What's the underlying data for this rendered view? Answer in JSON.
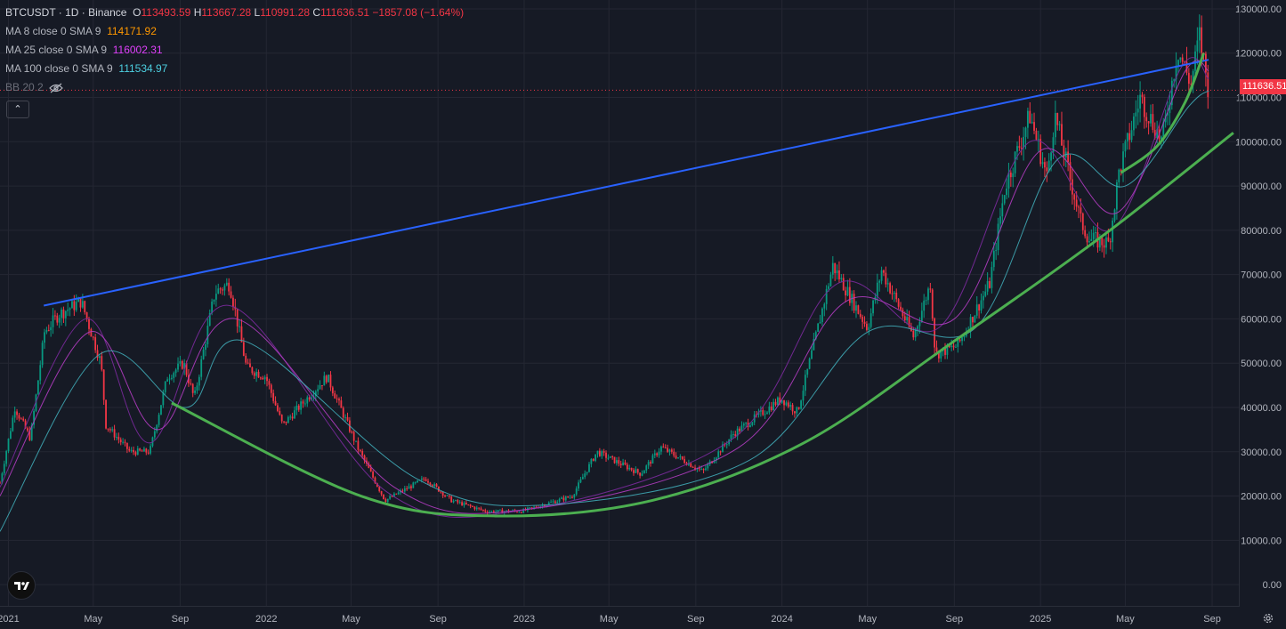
{
  "header": {
    "symbol": "BTCUSDT · 1D · Binance",
    "o_label": "O",
    "o_value": "113493.59",
    "h_label": "H",
    "h_value": "113667.28",
    "l_label": "L",
    "l_value": "110991.28",
    "c_label": "C",
    "c_value": "111636.51",
    "change": "−1857.08 (−1.64%)"
  },
  "indicators": {
    "ma8": {
      "label": "MA 8 close 0 SMA 9",
      "value": "114171.92",
      "color": "#ff9800"
    },
    "ma25": {
      "label": "MA 25 close 0 SMA 9",
      "value": "116002.31",
      "color": "#e040fb"
    },
    "ma100": {
      "label": "MA 100 close 0 SMA 9",
      "value": "111534.97",
      "color": "#4dd0e1"
    },
    "bb": {
      "label": "BB 20 2",
      "icon": "eye-off-icon"
    }
  },
  "collapse_glyph": "⌃",
  "last_price": "111636.51",
  "colors": {
    "up": "#089981",
    "down": "#f23645",
    "blue_line": "#2962ff",
    "green_curve": "#4caf50",
    "bg": "#161a25"
  },
  "chart_data": {
    "type": "line",
    "title": "",
    "xlabel": "",
    "ylabel": "",
    "ylim": [
      -5000,
      132000
    ],
    "x_ticks": [
      "2021",
      "May",
      "Sep",
      "2022",
      "May",
      "Sep",
      "2023",
      "May",
      "Sep",
      "2024",
      "May",
      "Sep",
      "2025",
      "May",
      "Sep"
    ],
    "y_ticks": [
      "130000.00",
      "120000.00",
      "110000.00",
      "100000.00",
      "90000.00",
      "80000.00",
      "70000.00",
      "60000.00",
      "50000.00",
      "40000.00",
      "30000.00",
      "20000.00",
      "10000.00",
      "0.00"
    ],
    "series": [
      {
        "x": [
          "2020-12-20",
          "2021-01-10",
          "2021-02-01",
          "2021-02-21",
          "2021-03-13",
          "2021-04-14",
          "2021-05-12",
          "2021-05-19",
          "2021-06-22",
          "2021-07-20",
          "2021-08-14",
          "2021-09-06",
          "2021-09-21",
          "2021-10-20",
          "2021-11-10",
          "2021-12-04",
          "2021-12-31",
          "2022-01-24",
          "2022-03-28",
          "2022-05-10",
          "2022-06-18",
          "2022-08-14",
          "2022-09-20",
          "2022-11-09",
          "2022-12-30",
          "2023-03-10",
          "2023-04-14",
          "2023-06-15",
          "2023-07-14",
          "2023-09-11",
          "2023-10-24",
          "2023-12-31",
          "2024-01-23",
          "2024-03-13",
          "2024-05-01",
          "2024-05-21",
          "2024-07-05",
          "2024-07-29",
          "2024-08-05",
          "2024-09-06",
          "2024-10-21",
          "2024-11-12",
          "2024-12-17",
          "2025-01-10",
          "2025-01-21",
          "2025-02-27",
          "2025-03-11",
          "2025-04-08",
          "2025-04-22",
          "2025-05-22",
          "2025-06-22",
          "2025-07-14",
          "2025-08-02",
          "2025-08-14",
          "2025-08-27"
        ],
        "values": [
          23000,
          40000,
          33000,
          57000,
          61000,
          64000,
          50000,
          36000,
          30000,
          30000,
          47000,
          50000,
          42000,
          66000,
          68000,
          49000,
          47000,
          36000,
          47000,
          31000,
          19000,
          24000,
          19000,
          16500,
          16600,
          20000,
          30000,
          25000,
          31000,
          25500,
          34000,
          42000,
          39000,
          72000,
          58000,
          71000,
          56000,
          68000,
          52000,
          54000,
          68000,
          90000,
          106000,
          92000,
          106000,
          82000,
          78000,
          77000,
          93000,
          110000,
          100000,
          121000,
          113000,
          124000,
          111636
        ]
      },
      {
        "name": "MA 8",
        "x": [
          "2020-12-20",
          "2021-04-20",
          "2021-07-20",
          "2021-11-10",
          "2022-06-20",
          "2022-12-30",
          "2023-10-24",
          "2024-03-20",
          "2024-08-10",
          "2024-12-17",
          "2025-04-10",
          "2025-07-20",
          "2025-08-27"
        ],
        "values": [
          22000,
          60000,
          32000,
          63000,
          21000,
          16800,
          33000,
          68000,
          58000,
          100000,
          80000,
          117000,
          114171.92
        ]
      },
      {
        "name": "MA 25",
        "x": [
          "2020-12-20",
          "2021-04-25",
          "2021-08-01",
          "2021-11-20",
          "2022-07-01",
          "2023-01-05",
          "2023-11-01",
          "2024-04-01",
          "2024-09-01",
          "2025-01-01",
          "2025-04-20",
          "2025-07-25",
          "2025-08-27"
        ],
        "values": [
          20000,
          57000,
          35000,
          60000,
          22000,
          17000,
          31000,
          64000,
          60000,
          98000,
          84000,
          116000,
          116002.31
        ]
      },
      {
        "name": "MA 100",
        "x": [
          "2020-12-20",
          "2021-05-10",
          "2021-09-10",
          "2021-12-01",
          "2022-08-01",
          "2023-02-01",
          "2023-11-15",
          "2024-05-01",
          "2024-10-01",
          "2025-01-25",
          "2025-05-01",
          "2025-07-30",
          "2025-08-27"
        ],
        "values": [
          12000,
          52000,
          40000,
          55000,
          24000,
          18000,
          28000,
          57000,
          58000,
          96000,
          90000,
          108000,
          111534.97
        ]
      },
      {
        "name": "trendline",
        "x": [
          "2021-02-20",
          "2025-08-27"
        ],
        "values": [
          63000,
          118500
        ]
      },
      {
        "name": "support-curve",
        "x": [
          "2021-08-20",
          "2022-05-15",
          "2022-11-21",
          "2023-07-01",
          "2024-02-01",
          "2024-09-01",
          "2025-04-01",
          "2025-10-01"
        ],
        "values": [
          41000,
          20000,
          15500,
          19000,
          32000,
          55000,
          79000,
          102000
        ]
      },
      {
        "name": "short-support-curve",
        "x": [
          "2025-04-25",
          "2025-06-15",
          "2025-07-25",
          "2025-08-20"
        ],
        "values": [
          93000,
          99000,
          109000,
          120000
        ]
      }
    ]
  }
}
